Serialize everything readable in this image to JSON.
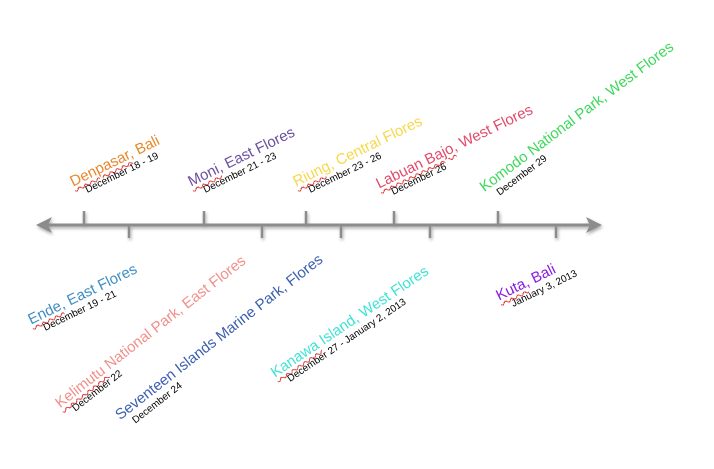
{
  "events": [
    {
      "id": "denpasar",
      "place_marked": "Denpasar",
      "place_rest": ", Bali",
      "date": "December 18 - 19",
      "color": "#E8872A"
    },
    {
      "id": "ende",
      "place_marked": "Ende",
      "place_rest": ", East Flores",
      "date": "December 19 - 21",
      "color": "#3E8DC4"
    },
    {
      "id": "moni",
      "place_marked": "Moni",
      "place_rest": ", East Flores",
      "date": "December 21 - 23",
      "color": "#6B4FA0"
    },
    {
      "id": "kelimutu",
      "place_marked": "Kelimutu",
      "place_rest": " National Park, East Flores",
      "date": "December 22",
      "color": "#F0908A"
    },
    {
      "id": "riung",
      "place_marked": "Riung",
      "place_rest": ", Central Flores",
      "date": "December 23 - 26",
      "color": "#F6D84A"
    },
    {
      "id": "seventeen",
      "place_marked": "",
      "place_rest": "Seventeen Islands Marine Park, Flores",
      "date": "December 24",
      "color": "#3C5FB0"
    },
    {
      "id": "labuan",
      "place_marked": "Labuan Bajo",
      "place_rest": ", West Flores",
      "date": "December 26",
      "color": "#E24A6A"
    },
    {
      "id": "kanawa",
      "place_marked": "Kanawa",
      "place_rest": " Island, West Flores",
      "date": "December 27 - January 2, 2013",
      "color": "#3FE3D3"
    },
    {
      "id": "komodo",
      "place_marked": "",
      "place_rest": "Komodo National Park, West Flores",
      "date": "December 29",
      "color": "#3ED85A"
    },
    {
      "id": "kuta",
      "place_marked": "Kuta",
      "place_rest": ", Bali",
      "date": "January 3, 2013",
      "color": "#8A1AE0"
    }
  ]
}
